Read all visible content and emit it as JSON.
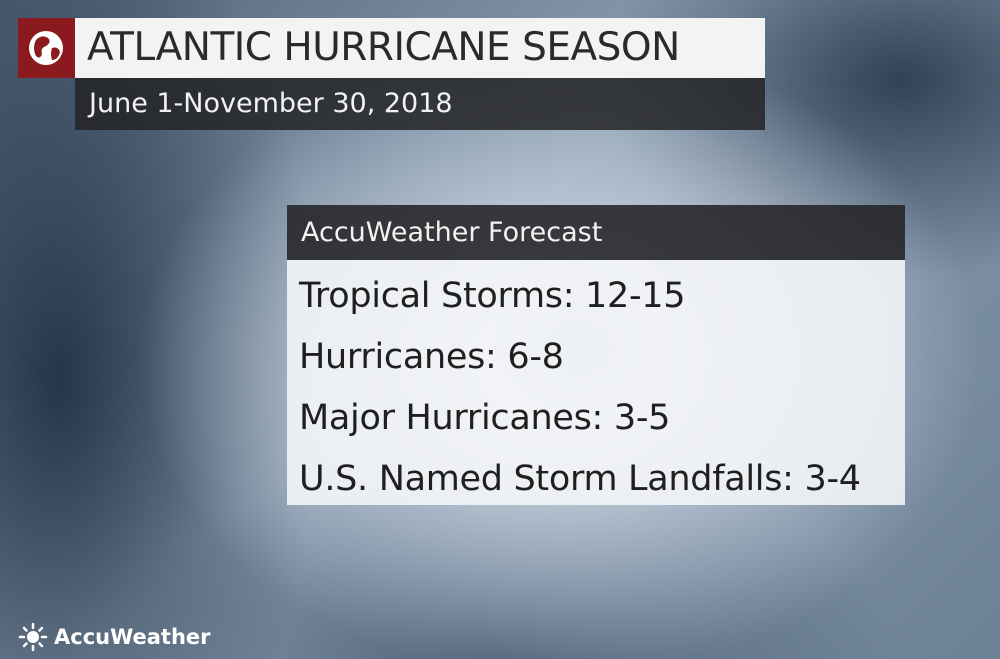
{
  "header": {
    "title": "ATLANTIC HURRICANE SEASON",
    "subtitle": "June 1-November 30, 2018"
  },
  "forecast": {
    "title": "AccuWeather Forecast",
    "items": [
      "Tropical Storms: 12-15",
      "Hurricanes: 6-8",
      "Major Hurricanes: 3-5",
      "U.S. Named Storm Landfalls: 3-4"
    ]
  },
  "brand": {
    "name": "AccuWeather"
  }
}
